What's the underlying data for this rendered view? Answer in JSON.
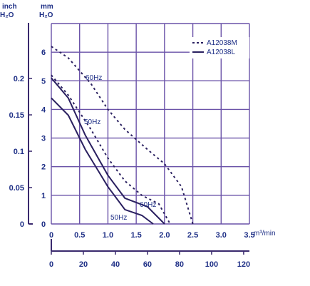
{
  "chart_data": {
    "type": "line",
    "units": {
      "left_outer_top": "inch",
      "left_outer_bottom": "H₂O",
      "left_inner_top": "mm",
      "left_inner_bottom": "H₂O",
      "x_top_unit": "m³/min",
      "x_bottom_unit": "CFM"
    },
    "y_inch_ticks": [
      "0",
      "0.05",
      "0.1",
      "0.15",
      "0.2"
    ],
    "y_mm_ticks": [
      "0",
      "1",
      "2",
      "3",
      "4",
      "5",
      "6"
    ],
    "x_m3_ticks": [
      "0",
      "0.5",
      "1.0",
      "1.5",
      "2.0",
      "2.5",
      "3.0",
      "3.5"
    ],
    "x_cfm_ticks": [
      "0",
      "20",
      "40",
      "60",
      "80",
      "100",
      "120"
    ],
    "xlim": [
      0,
      3.5
    ],
    "ylim": [
      0,
      7
    ],
    "legend": {
      "position": "top-right",
      "entries": [
        {
          "name": "A12038M",
          "style": "dashed"
        },
        {
          "name": "A12038L",
          "style": "solid"
        }
      ]
    },
    "annotations": [
      "60Hz",
      "50Hz",
      "60Hz",
      "50Hz"
    ],
    "series": [
      {
        "name": "A12038M",
        "label": "60Hz",
        "style": "dashed",
        "x": [
          0,
          0.3,
          0.7,
          1.0,
          1.3,
          1.7,
          2.0,
          2.3,
          2.5
        ],
        "y": [
          6.2,
          5.8,
          4.9,
          4.0,
          3.3,
          2.6,
          2.1,
          1.3,
          0
        ]
      },
      {
        "name": "A12038M",
        "label": "50Hz",
        "style": "dashed",
        "x": [
          0,
          0.3,
          0.7,
          1.0,
          1.3,
          1.6,
          1.9,
          2.1
        ],
        "y": [
          5.2,
          4.5,
          3.3,
          2.3,
          1.5,
          1.0,
          0.7,
          0
        ]
      },
      {
        "name": "A12038L",
        "label": "60Hz",
        "style": "solid",
        "x": [
          0,
          0.3,
          0.6,
          1.0,
          1.3,
          1.7,
          2.0
        ],
        "y": [
          5.1,
          4.4,
          3.1,
          1.7,
          0.9,
          0.6,
          0
        ]
      },
      {
        "name": "A12038L",
        "label": "50Hz",
        "style": "solid",
        "x": [
          0,
          0.3,
          0.6,
          1.0,
          1.3,
          1.6,
          1.8
        ],
        "y": [
          4.4,
          3.8,
          2.6,
          1.3,
          0.5,
          0.3,
          0
        ]
      }
    ]
  }
}
